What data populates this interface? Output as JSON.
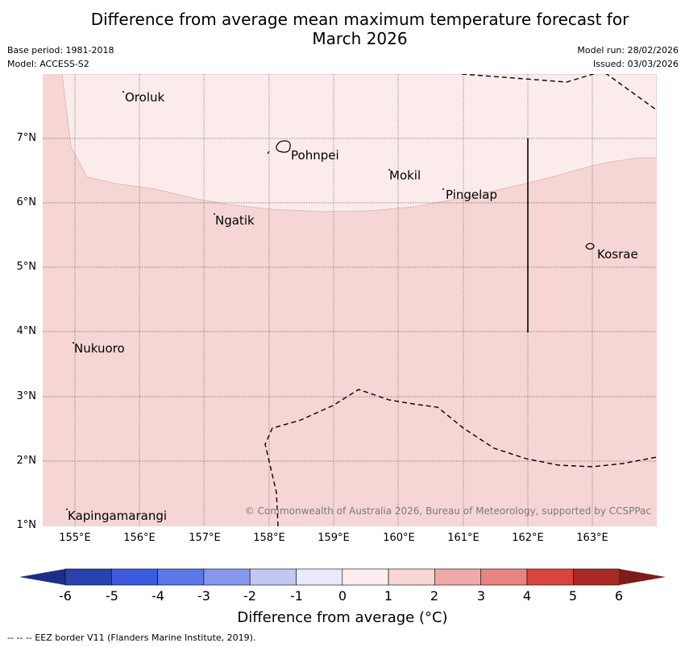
{
  "title": {
    "line1": "Difference from average mean maximum temperature forecast for",
    "line2": "March 2026"
  },
  "meta": {
    "base_period": "Base period: 1981-2018",
    "model": "Model: ACCESS-S2",
    "model_run": "Model run: 28/02/2026",
    "issued": "Issued: 03/03/2026"
  },
  "map": {
    "lat_ticks": [
      "7°N",
      "6°N",
      "5°N",
      "4°N",
      "3°N",
      "2°N",
      "1°N"
    ],
    "lon_ticks": [
      "155°E",
      "156°E",
      "157°E",
      "158°E",
      "159°E",
      "160°E",
      "161°E",
      "162°E",
      "163°E"
    ],
    "extent": {
      "lon_min": 154.5,
      "lon_max": 164.0,
      "lat_min": 1.0,
      "lat_max": 8.0
    },
    "places": [
      {
        "name": "Oroluk",
        "lon": 155.75,
        "lat": 7.65
      },
      {
        "name": "Pohnpei",
        "lon": 158.35,
        "lat": 6.9
      },
      {
        "name": "Mokil",
        "lon": 159.85,
        "lat": 6.45
      },
      {
        "name": "Pingelap",
        "lon": 160.75,
        "lat": 6.2
      },
      {
        "name": "Ngatik",
        "lon": 157.2,
        "lat": 5.8
      },
      {
        "name": "Kosrae",
        "lon": 163.0,
        "lat": 5.3
      },
      {
        "name": "Nukuoro",
        "lon": 154.95,
        "lat": 3.85
      },
      {
        "name": "Kapingamarangi",
        "lon": 154.85,
        "lat": 1.3
      }
    ],
    "copyright": "© Commonwealth of Australia 2026, Bureau of Meteorology, supported by CCSPPac"
  },
  "colorbar": {
    "title": "Difference from average (°C)",
    "ticks": [
      "-6",
      "-5",
      "-4",
      "-3",
      "-2",
      "-1",
      "0",
      "1",
      "2",
      "3",
      "4",
      "5",
      "6"
    ],
    "colors": [
      "#2942ae",
      "#3c5ae0",
      "#5c78e6",
      "#8797ec",
      "#c3c8f2",
      "#e8eafb",
      "#fdeced",
      "#f7d6d5",
      "#efaaa8",
      "#e8837e",
      "#d9453e",
      "#a82b25"
    ],
    "under_color": "#1c2f86",
    "over_color": "#7c1d19"
  },
  "footnote": "--  --  -- EEZ border V11 (Flanders Marine Institute, 2019)."
}
